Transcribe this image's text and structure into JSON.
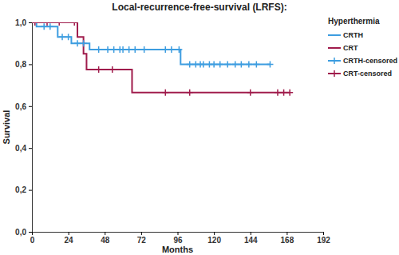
{
  "chart_data": {
    "type": "line",
    "title": "Local-recurrence-free-survival (LRFS):",
    "x_label": "Months",
    "y_label": "Survival",
    "legend_title": "Hyperthermia",
    "legend": "right",
    "xlim": [
      0,
      192
    ],
    "xticks": [
      0,
      24,
      48,
      72,
      96,
      120,
      144,
      168,
      192
    ],
    "ylim": [
      0,
      1
    ],
    "yticks": [
      {
        "value": 0,
        "label": "0,0"
      },
      {
        "value": 0.2,
        "label": "0,2"
      },
      {
        "value": 0.4,
        "label": "0,4"
      },
      {
        "value": 0.6,
        "label": "0,6"
      },
      {
        "value": 0.8,
        "label": "0,8"
      },
      {
        "value": 1,
        "label": "1,0"
      }
    ],
    "series": [
      {
        "name": "CRTH",
        "color": "#3d9de0",
        "type": "line",
        "line_style": "step",
        "x": [
          0,
          3,
          17,
          26,
          38,
          98,
          157
        ],
        "values": [
          1,
          0.98,
          0.93,
          0.9,
          0.87,
          0.8,
          0.8
        ]
      },
      {
        "name": "CRT",
        "color": "#a01c4c",
        "type": "line",
        "line_style": "step",
        "x": [
          0,
          30,
          34,
          36,
          66,
          170
        ],
        "values": [
          1,
          0.93,
          0.85,
          0.775,
          0.665,
          0.665
        ]
      },
      {
        "name": "CRTH-censored",
        "color": "#3d9de0",
        "type": "scatter",
        "marker": "plus",
        "x": [
          8,
          12,
          20,
          24,
          30,
          34,
          44,
          50,
          54,
          58,
          60,
          64,
          68,
          74,
          88,
          92,
          97,
          104,
          108,
          111,
          113,
          117,
          120,
          124,
          129,
          134,
          138,
          143,
          148,
          157
        ],
        "values": [
          0.98,
          0.98,
          0.93,
          0.93,
          0.9,
          0.9,
          0.87,
          0.87,
          0.87,
          0.87,
          0.87,
          0.87,
          0.87,
          0.87,
          0.87,
          0.87,
          0.87,
          0.8,
          0.8,
          0.8,
          0.8,
          0.8,
          0.8,
          0.8,
          0.8,
          0.8,
          0.8,
          0.8,
          0.8,
          0.8
        ]
      },
      {
        "name": "CRT-censored",
        "color": "#a01c4c",
        "type": "scatter",
        "marker": "plus",
        "x": [
          2,
          10,
          18,
          28,
          44,
          53,
          88,
          104,
          144,
          162,
          166,
          170
        ],
        "values": [
          1,
          1,
          1,
          1,
          0.775,
          0.775,
          0.665,
          0.665,
          0.665,
          0.665,
          0.665,
          0.665
        ]
      }
    ]
  }
}
